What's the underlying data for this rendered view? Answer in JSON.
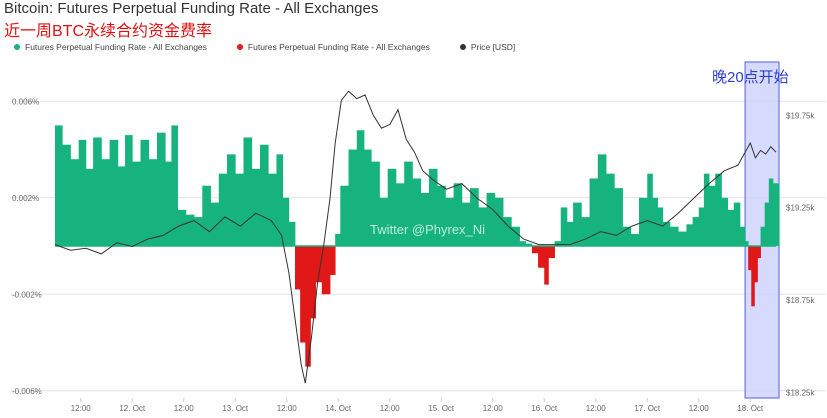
{
  "header": {
    "title": "Bitcoin: Futures Perpetual Funding Rate - All Exchanges",
    "subtitle": "近一周BTC永续合约资金费率"
  },
  "annotation": {
    "highlight_label": "晚20点开始",
    "watermark": "Twitter @Phyrex_Ni"
  },
  "colors": {
    "positive": "#17b37e",
    "negative": "#e01818",
    "price": "#333333",
    "highlight_fill": "#cfd3fb",
    "highlight_stroke": "#6b73f0",
    "grid": "#e4e4e4",
    "tick_text": "#666666"
  },
  "chart_data": {
    "type": "bar",
    "legend": [
      {
        "label": "Futures Perpetual Funding Rate - All Exchanges",
        "color": "#17b37e"
      },
      {
        "label": "Futures Perpetual Funding Rate - All Exchanges",
        "color": "#e01818"
      },
      {
        "label": "Price [USD]",
        "color": "#333333"
      }
    ],
    "legend_position": "top-left",
    "grid": true,
    "x_ticks": [
      "12:00",
      "12. Oct",
      "12:00",
      "13. Oct",
      "12:00",
      "14. Oct",
      "12:00",
      "15. Oct",
      "12:00",
      "16. Oct",
      "12:00",
      "17. Oct",
      "12:00",
      "18. Oct"
    ],
    "x_start_day": 11.25,
    "x_end_day": 18.25,
    "y_left": {
      "ticks": [
        "-0.006%",
        "-0.002%",
        "0.002%",
        "0.006%"
      ],
      "tick_values": [
        -0.006,
        -0.002,
        0.002,
        0.006
      ],
      "ylim": [
        -0.0063,
        0.0068
      ]
    },
    "y_right": {
      "ticks": [
        "$18.25k",
        "$18.75k",
        "$19.25k",
        "$19.75k"
      ],
      "tick_values": [
        18.25,
        18.75,
        19.25,
        19.75
      ],
      "ylim": [
        18.22,
        19.93
      ]
    },
    "highlight_range": {
      "from_day": 17.95,
      "to_day": 18.25
    },
    "funding_rate": [
      {
        "t": 11.25,
        "v": 0.005
      },
      {
        "t": 11.32,
        "v": 0.0042
      },
      {
        "t": 11.4,
        "v": 0.0036
      },
      {
        "t": 11.48,
        "v": 0.0044
      },
      {
        "t": 11.55,
        "v": 0.0032
      },
      {
        "t": 11.62,
        "v": 0.0045
      },
      {
        "t": 11.7,
        "v": 0.0036
      },
      {
        "t": 11.78,
        "v": 0.0044
      },
      {
        "t": 11.86,
        "v": 0.0033
      },
      {
        "t": 11.93,
        "v": 0.0046
      },
      {
        "t": 12.0,
        "v": 0.0035
      },
      {
        "t": 12.08,
        "v": 0.0044
      },
      {
        "t": 12.16,
        "v": 0.0036
      },
      {
        "t": 12.24,
        "v": 0.0047
      },
      {
        "t": 12.32,
        "v": 0.0035
      },
      {
        "t": 12.38,
        "v": 0.005
      },
      {
        "t": 12.44,
        "v": 0.0015
      },
      {
        "t": 12.52,
        "v": 0.0013
      },
      {
        "t": 12.6,
        "v": 0.0012
      },
      {
        "t": 12.68,
        "v": 0.0025
      },
      {
        "t": 12.76,
        "v": 0.0018
      },
      {
        "t": 12.84,
        "v": 0.003
      },
      {
        "t": 12.92,
        "v": 0.0038
      },
      {
        "t": 13.0,
        "v": 0.003
      },
      {
        "t": 13.08,
        "v": 0.0045
      },
      {
        "t": 13.16,
        "v": 0.0032
      },
      {
        "t": 13.24,
        "v": 0.0042
      },
      {
        "t": 13.32,
        "v": 0.003
      },
      {
        "t": 13.4,
        "v": 0.0038
      },
      {
        "t": 13.46,
        "v": 0.002
      },
      {
        "t": 13.52,
        "v": 0.001
      },
      {
        "t": 13.58,
        "v": -0.0018
      },
      {
        "t": 13.63,
        "v": -0.004
      },
      {
        "t": 13.68,
        "v": -0.005
      },
      {
        "t": 13.73,
        "v": -0.003
      },
      {
        "t": 13.78,
        "v": -0.0015
      },
      {
        "t": 13.84,
        "v": -0.002
      },
      {
        "t": 13.92,
        "v": -0.0012
      },
      {
        "t": 13.97,
        "v": 0.0005
      },
      {
        "t": 14.02,
        "v": 0.0025
      },
      {
        "t": 14.1,
        "v": 0.004
      },
      {
        "t": 14.18,
        "v": 0.0048
      },
      {
        "t": 14.25,
        "v": 0.004
      },
      {
        "t": 14.32,
        "v": 0.0035
      },
      {
        "t": 14.4,
        "v": 0.002
      },
      {
        "t": 14.48,
        "v": 0.0032
      },
      {
        "t": 14.56,
        "v": 0.0026
      },
      {
        "t": 14.64,
        "v": 0.0035
      },
      {
        "t": 14.72,
        "v": 0.0028
      },
      {
        "t": 14.8,
        "v": 0.0022
      },
      {
        "t": 14.88,
        "v": 0.0032
      },
      {
        "t": 14.96,
        "v": 0.0025
      },
      {
        "t": 15.04,
        "v": 0.002
      },
      {
        "t": 15.12,
        "v": 0.0026
      },
      {
        "t": 15.2,
        "v": 0.0018
      },
      {
        "t": 15.28,
        "v": 0.0024
      },
      {
        "t": 15.36,
        "v": 0.0016
      },
      {
        "t": 15.44,
        "v": 0.0022
      },
      {
        "t": 15.52,
        "v": 0.002
      },
      {
        "t": 15.6,
        "v": 0.0012
      },
      {
        "t": 15.68,
        "v": 0.0008
      },
      {
        "t": 15.76,
        "v": 0.0002
      },
      {
        "t": 15.82,
        "v": 0.0001
      },
      {
        "t": 15.88,
        "v": -0.0003
      },
      {
        "t": 15.94,
        "v": -0.0009
      },
      {
        "t": 16.0,
        "v": -0.0016
      },
      {
        "t": 16.04,
        "v": -0.0005
      },
      {
        "t": 16.1,
        "v": 0.0002
      },
      {
        "t": 16.16,
        "v": 0.0016
      },
      {
        "t": 16.22,
        "v": 0.001
      },
      {
        "t": 16.28,
        "v": 0.0018
      },
      {
        "t": 16.36,
        "v": 0.0012
      },
      {
        "t": 16.44,
        "v": 0.0028
      },
      {
        "t": 16.52,
        "v": 0.0038
      },
      {
        "t": 16.6,
        "v": 0.003
      },
      {
        "t": 16.68,
        "v": 0.0024
      },
      {
        "t": 16.76,
        "v": 0.0008
      },
      {
        "t": 16.84,
        "v": 0.0005
      },
      {
        "t": 16.92,
        "v": 0.002
      },
      {
        "t": 17.0,
        "v": 0.003
      },
      {
        "t": 17.05,
        "v": 0.002
      },
      {
        "t": 17.1,
        "v": 0.0016
      },
      {
        "t": 17.15,
        "v": 0.001
      },
      {
        "t": 17.22,
        "v": 0.0008
      },
      {
        "t": 17.3,
        "v": 0.0006
      },
      {
        "t": 17.38,
        "v": 0.0009
      },
      {
        "t": 17.44,
        "v": 0.0012
      },
      {
        "t": 17.5,
        "v": 0.0016
      },
      {
        "t": 17.55,
        "v": 0.003
      },
      {
        "t": 17.6,
        "v": 0.0025
      },
      {
        "t": 17.66,
        "v": 0.003
      },
      {
        "t": 17.72,
        "v": 0.002
      },
      {
        "t": 17.78,
        "v": 0.0015
      },
      {
        "t": 17.84,
        "v": 0.0018
      },
      {
        "t": 17.9,
        "v": 0.0008
      },
      {
        "t": 17.95,
        "v": 0.0002
      },
      {
        "t": 17.98,
        "v": -0.001
      },
      {
        "t": 18.01,
        "v": -0.0025
      },
      {
        "t": 18.04,
        "v": -0.0015
      },
      {
        "t": 18.07,
        "v": -0.0005
      },
      {
        "t": 18.1,
        "v": 0.0008
      },
      {
        "t": 18.14,
        "v": 0.0018
      },
      {
        "t": 18.18,
        "v": 0.0028
      },
      {
        "t": 18.22,
        "v": 0.0026
      },
      {
        "t": 18.25,
        "v": 0.0026
      }
    ],
    "price": [
      {
        "t": 11.25,
        "v": 19.05
      },
      {
        "t": 11.4,
        "v": 19.02
      },
      {
        "t": 11.55,
        "v": 19.03
      },
      {
        "t": 11.7,
        "v": 19.0
      },
      {
        "t": 11.85,
        "v": 19.06
      },
      {
        "t": 12.0,
        "v": 19.04
      },
      {
        "t": 12.15,
        "v": 19.08
      },
      {
        "t": 12.3,
        "v": 19.1
      },
      {
        "t": 12.45,
        "v": 19.15
      },
      {
        "t": 12.6,
        "v": 19.18
      },
      {
        "t": 12.75,
        "v": 19.12
      },
      {
        "t": 12.9,
        "v": 19.2
      },
      {
        "t": 13.05,
        "v": 19.15
      },
      {
        "t": 13.2,
        "v": 19.22
      },
      {
        "t": 13.35,
        "v": 19.18
      },
      {
        "t": 13.45,
        "v": 19.1
      },
      {
        "t": 13.52,
        "v": 18.9
      },
      {
        "t": 13.58,
        "v": 18.65
      },
      {
        "t": 13.64,
        "v": 18.4
      },
      {
        "t": 13.68,
        "v": 18.3
      },
      {
        "t": 13.74,
        "v": 18.55
      },
      {
        "t": 13.8,
        "v": 18.85
      },
      {
        "t": 13.86,
        "v": 19.05
      },
      {
        "t": 13.92,
        "v": 19.3
      },
      {
        "t": 13.97,
        "v": 19.6
      },
      {
        "t": 14.03,
        "v": 19.83
      },
      {
        "t": 14.1,
        "v": 19.88
      },
      {
        "t": 14.18,
        "v": 19.84
      },
      {
        "t": 14.26,
        "v": 19.86
      },
      {
        "t": 14.34,
        "v": 19.75
      },
      {
        "t": 14.42,
        "v": 19.68
      },
      {
        "t": 14.5,
        "v": 19.7
      },
      {
        "t": 14.58,
        "v": 19.78
      },
      {
        "t": 14.66,
        "v": 19.62
      },
      {
        "t": 14.74,
        "v": 19.55
      },
      {
        "t": 14.82,
        "v": 19.45
      },
      {
        "t": 14.92,
        "v": 19.4
      },
      {
        "t": 15.05,
        "v": 19.35
      },
      {
        "t": 15.2,
        "v": 19.38
      },
      {
        "t": 15.35,
        "v": 19.3
      },
      {
        "t": 15.5,
        "v": 19.24
      },
      {
        "t": 15.65,
        "v": 19.15
      },
      {
        "t": 15.8,
        "v": 19.08
      },
      {
        "t": 15.95,
        "v": 19.05
      },
      {
        "t": 16.1,
        "v": 19.05
      },
      {
        "t": 16.25,
        "v": 19.05
      },
      {
        "t": 16.4,
        "v": 19.08
      },
      {
        "t": 16.55,
        "v": 19.12
      },
      {
        "t": 16.7,
        "v": 19.1
      },
      {
        "t": 16.85,
        "v": 19.15
      },
      {
        "t": 17.0,
        "v": 19.18
      },
      {
        "t": 17.15,
        "v": 19.15
      },
      {
        "t": 17.3,
        "v": 19.22
      },
      {
        "t": 17.45,
        "v": 19.3
      },
      {
        "t": 17.6,
        "v": 19.38
      },
      {
        "t": 17.75,
        "v": 19.45
      },
      {
        "t": 17.88,
        "v": 19.48
      },
      {
        "t": 17.95,
        "v": 19.55
      },
      {
        "t": 18.0,
        "v": 19.6
      },
      {
        "t": 18.05,
        "v": 19.52
      },
      {
        "t": 18.1,
        "v": 19.56
      },
      {
        "t": 18.15,
        "v": 19.54
      },
      {
        "t": 18.2,
        "v": 19.58
      },
      {
        "t": 18.25,
        "v": 19.55
      }
    ]
  }
}
